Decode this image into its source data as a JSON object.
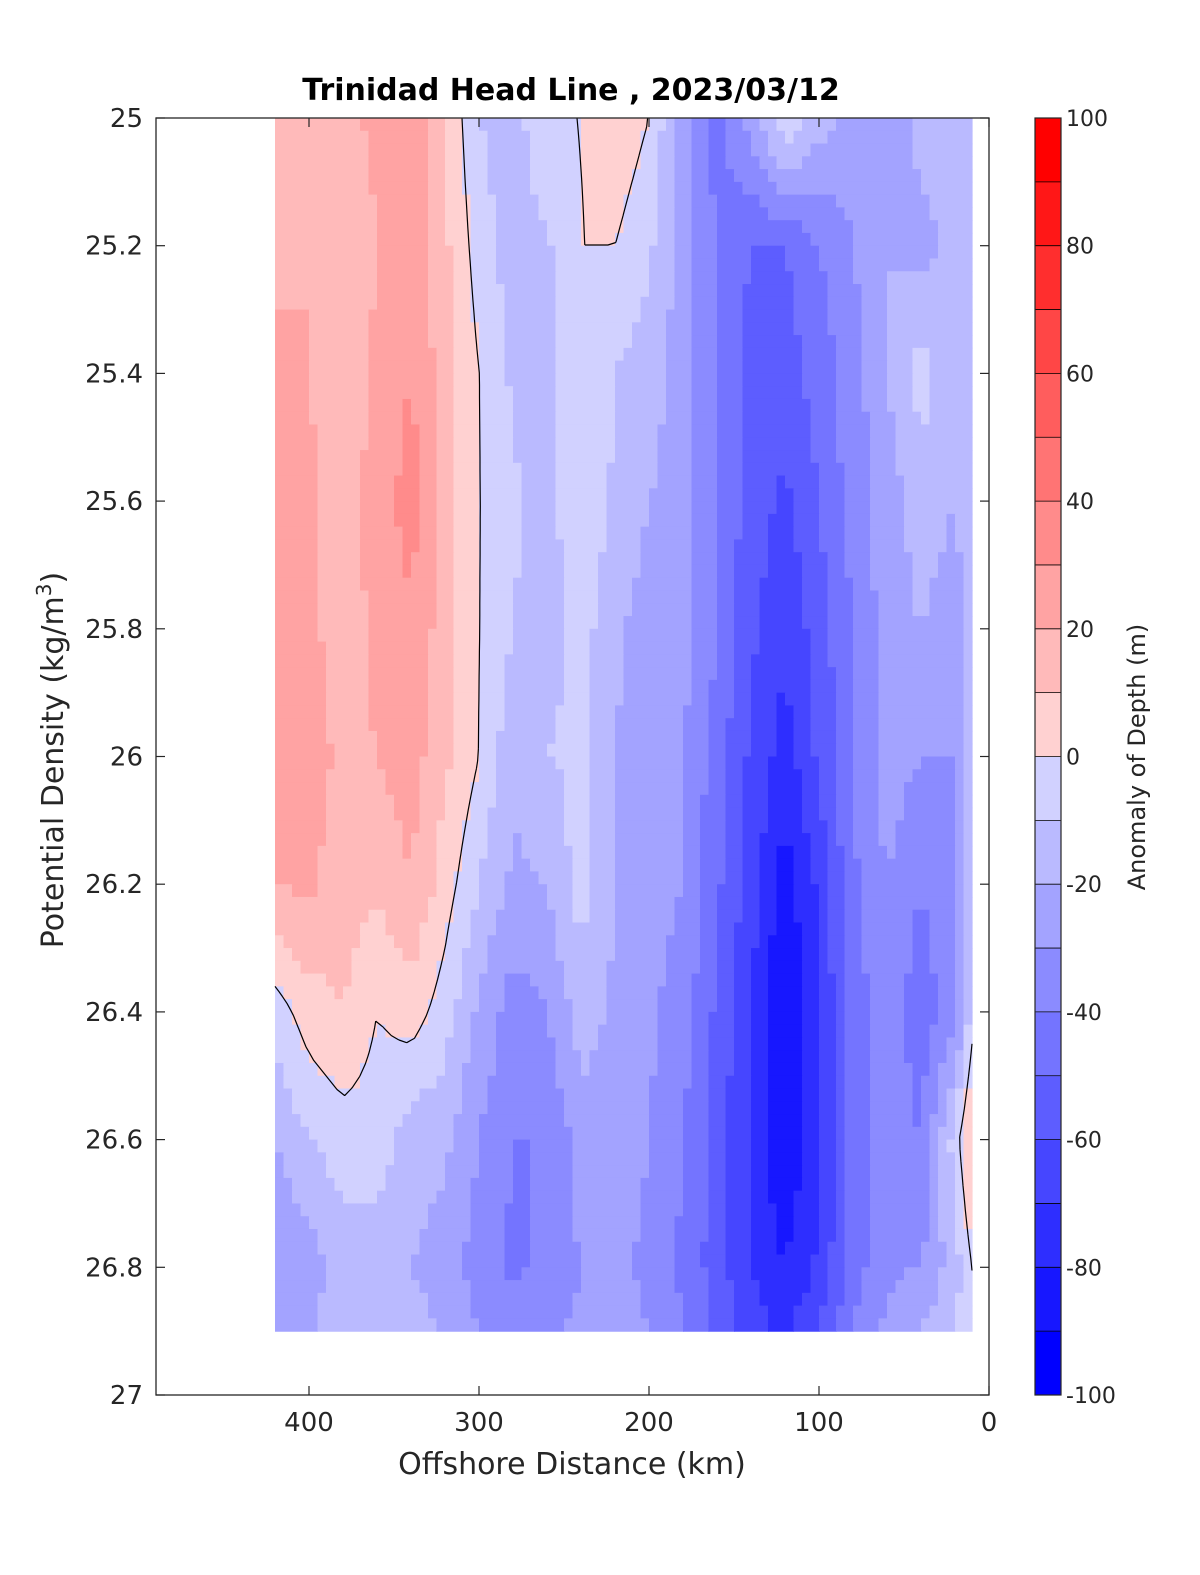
{
  "chart_data": {
    "type": "contourf",
    "title": "Trinidad Head Line , 2023/03/12",
    "xlabel": "Offshore Distance (km)",
    "ylabel_main": "Potential Density (kg/m",
    "ylabel_sup": "3",
    "ylabel_close": ")",
    "xlim": [
      490,
      0
    ],
    "ylim": [
      25,
      27
    ],
    "y_reversed": true,
    "xticks": [
      400,
      300,
      200,
      100,
      0
    ],
    "yticks": [
      25,
      25.2,
      25.4,
      25.6,
      25.8,
      26,
      26.2,
      26.4,
      26.6,
      26.8,
      27
    ],
    "colorbar": {
      "label": "Anomaly of Depth (m)",
      "range": [
        -100,
        100
      ],
      "step": 10,
      "ticks": [
        100,
        80,
        60,
        40,
        20,
        0,
        -20,
        -40,
        -60,
        -80,
        -100
      ],
      "low_color": "#0000ff",
      "mid_color": "#ffffff",
      "high_color": "#ff0000"
    },
    "data_extent": {
      "x": [
        420,
        10
      ],
      "y": [
        25,
        26.9
      ]
    },
    "stations_km": [
      420,
      400,
      380,
      360,
      340,
      320,
      300,
      280,
      260,
      240,
      220,
      200,
      180,
      160,
      140,
      120,
      100,
      80,
      60,
      40,
      20,
      10
    ],
    "density_levels": [
      25.0,
      25.2,
      25.4,
      25.6,
      25.8,
      26.0,
      26.2,
      26.4,
      26.6,
      26.8,
      26.9
    ],
    "anomaly_m": [
      [
        12,
        15,
        18,
        22,
        28,
        10,
        -10,
        -15,
        0,
        0,
        8,
        0,
        -25,
        -45,
        -25,
        0,
        -15,
        -25,
        -30,
        -15,
        -10,
        -10
      ],
      [
        18,
        20,
        12,
        20,
        26,
        12,
        -5,
        -15,
        -12,
        0,
        0,
        -8,
        -25,
        -40,
        -50,
        -50,
        -40,
        -30,
        -20,
        -25,
        -15,
        -10
      ],
      [
        22,
        20,
        14,
        22,
        30,
        15,
        0,
        -12,
        -15,
        0,
        -10,
        -15,
        -25,
        -40,
        -55,
        -55,
        -45,
        -35,
        -20,
        -5,
        -20,
        -10
      ],
      [
        24,
        22,
        15,
        24,
        35,
        16,
        0,
        -8,
        -15,
        0,
        -12,
        -20,
        -25,
        -40,
        -55,
        -62,
        -50,
        -35,
        -25,
        -15,
        -20,
        -12
      ],
      [
        25,
        22,
        16,
        22,
        28,
        15,
        0,
        -10,
        -15,
        -5,
        -18,
        -25,
        -25,
        -40,
        -58,
        -68,
        -55,
        -40,
        -25,
        -20,
        -25,
        -15
      ],
      [
        28,
        24,
        18,
        20,
        25,
        12,
        0,
        -18,
        -10,
        -8,
        -20,
        -25,
        -30,
        -45,
        -62,
        -75,
        -58,
        -40,
        -25,
        -30,
        -30,
        -5
      ],
      [
        20,
        22,
        15,
        12,
        20,
        5,
        -10,
        -22,
        -20,
        -5,
        -20,
        -25,
        -30,
        -48,
        -65,
        -85,
        -68,
        -42,
        -30,
        -40,
        -32,
        -5
      ],
      [
        -5,
        5,
        10,
        0,
        5,
        -5,
        -22,
        -35,
        -30,
        -15,
        -22,
        -28,
        -35,
        -52,
        -70,
        -92,
        -70,
        -45,
        -35,
        -45,
        -35,
        -5
      ],
      [
        -20,
        -10,
        -5,
        -5,
        -15,
        -18,
        -30,
        -40,
        -40,
        -25,
        -25,
        -30,
        -40,
        -55,
        -72,
        -90,
        -72,
        -45,
        -35,
        -40,
        -5,
        15
      ],
      [
        -30,
        -25,
        -15,
        -15,
        -20,
        -25,
        -35,
        -42,
        -38,
        -30,
        -28,
        -32,
        -42,
        -55,
        -70,
        -80,
        -68,
        -45,
        -32,
        -30,
        -15,
        0
      ],
      [
        -25,
        -22,
        -12,
        -10,
        -15,
        -22,
        -30,
        -35,
        -32,
        -28,
        -25,
        -30,
        -40,
        -52,
        -65,
        -72,
        -60,
        -40,
        -28,
        -20,
        -10,
        0
      ]
    ],
    "contour_level": 0
  }
}
